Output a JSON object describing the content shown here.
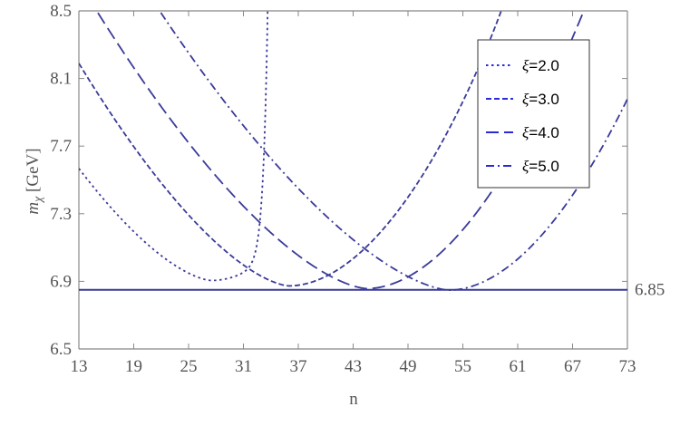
{
  "chart_data": {
    "type": "line",
    "title": "",
    "xlabel": "n",
    "ylabel": "m_χ [GeV]",
    "ylabel_main": "m",
    "ylabel_sub": "χ",
    "ylabel_unit": " [GeV]",
    "xlim": [
      13,
      73
    ],
    "ylim": [
      6.5,
      8.5
    ],
    "x_ticks": [
      13,
      19,
      25,
      31,
      37,
      43,
      49,
      55,
      61,
      67,
      73
    ],
    "x_tick_labels": [
      "13",
      "19",
      "25",
      "31",
      "37",
      "43",
      "49",
      "55",
      "61",
      "67",
      "73"
    ],
    "y_ticks": [
      6.5,
      6.9,
      7.3,
      7.7,
      8.1,
      8.5
    ],
    "y_tick_labels": [
      "6.5",
      "6.9",
      "7.3",
      "7.7",
      "8.1",
      "8.5"
    ],
    "grid": false,
    "legend_position": "top-right",
    "line_color": "#3a3a9a",
    "hline": {
      "y": 6.85,
      "label": "6.85"
    },
    "series": [
      {
        "name": "ξ=2.0",
        "xi": "ξ",
        "value_text": "=2.0",
        "dash": "dotted",
        "min_x": 27.5,
        "min_y": 6.905,
        "left_slope": -0.128,
        "right_k": 0.92,
        "right_p": 1.8
      },
      {
        "name": "ξ=3.0",
        "xi": "ξ",
        "value_text": "=3.0",
        "dash": "short-dash",
        "min_x": 36.0,
        "min_y": 6.873,
        "left_slope": -0.124,
        "right_k": 0.121,
        "right_p": 1.72
      },
      {
        "name": "ξ=4.0",
        "xi": "ξ",
        "value_text": "=4.0",
        "dash": "long-dash",
        "min_x": 44.5,
        "min_y": 6.857,
        "left_slope": -0.103,
        "right_k": 0.06,
        "right_p": 1.5
      },
      {
        "name": "ξ=5.0",
        "xi": "ξ",
        "value_text": "=5.0",
        "dash": "dash-dot",
        "min_x": 53.5,
        "min_y": 6.848,
        "left_slope": -0.092,
        "right_k": 0.038,
        "right_p": 1.31
      }
    ]
  }
}
